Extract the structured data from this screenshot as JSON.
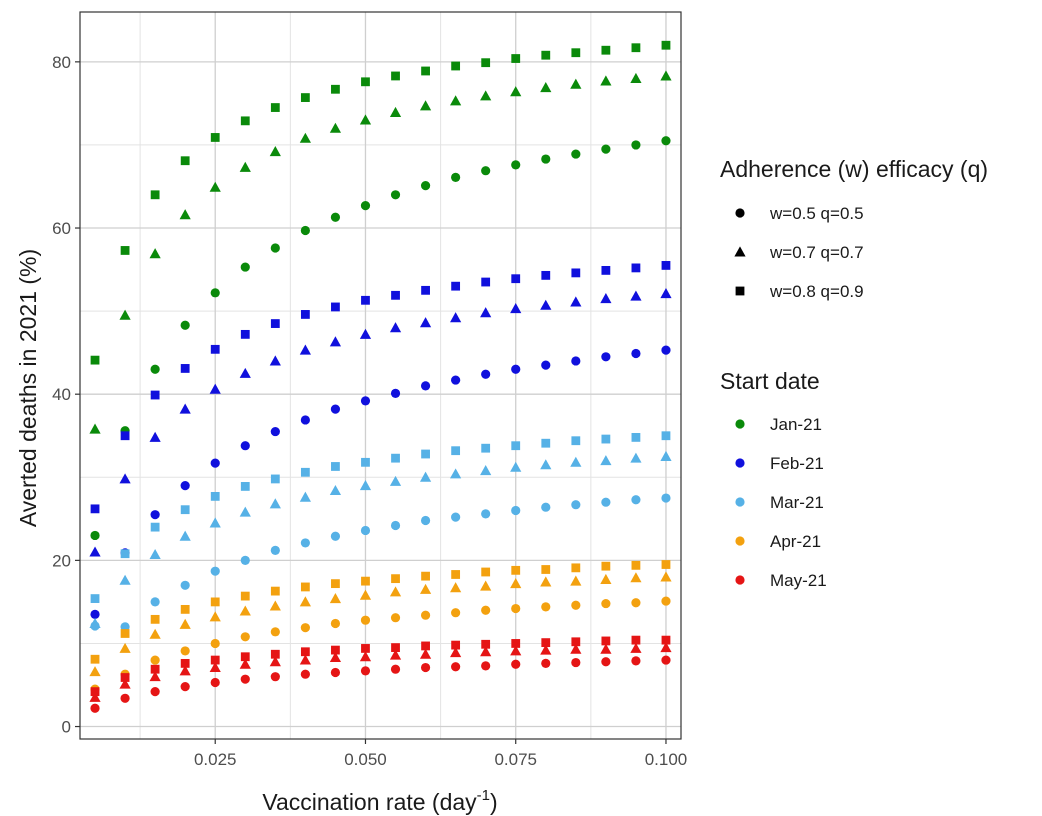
{
  "chart_data": {
    "type": "scatter",
    "xlabel": "Vaccination rate (day",
    "xlabel_superscript": "-1",
    "xlabel_suffix": ")",
    "ylabel": "Averted deaths in 2021 (%)",
    "xlim": [
      0.0025,
      0.1025
    ],
    "ylim": [
      -1.5,
      86
    ],
    "x_ticks": [
      0.025,
      0.05,
      0.075,
      0.1
    ],
    "x_tick_labels": [
      "0.025",
      "0.050",
      "0.075",
      "0.100"
    ],
    "y_ticks": [
      0,
      20,
      40,
      60,
      80
    ],
    "y_tick_labels": [
      "0",
      "20",
      "40",
      "60",
      "80"
    ],
    "grid": true,
    "x": [
      0.005,
      0.01,
      0.015,
      0.02,
      0.025,
      0.03,
      0.035,
      0.04,
      0.045,
      0.05,
      0.055,
      0.06,
      0.065,
      0.07,
      0.075,
      0.08,
      0.085,
      0.09,
      0.095,
      0.1
    ],
    "shape_legend": {
      "title": "Adherence (w) efficacy (q)",
      "entries": [
        {
          "label": "w=0.5 q=0.5",
          "shape": "circle"
        },
        {
          "label": "w=0.7 q=0.7",
          "shape": "triangle"
        },
        {
          "label": "w=0.8 q=0.9",
          "shape": "square"
        }
      ]
    },
    "color_legend": {
      "title": "Start date",
      "entries": [
        {
          "label": "Jan-21",
          "color": "#0a8a0a"
        },
        {
          "label": "Feb-21",
          "color": "#1010dd"
        },
        {
          "label": "Mar-21",
          "color": "#56b1e6"
        },
        {
          "label": "Apr-21",
          "color": "#f3a10f"
        },
        {
          "label": "May-21",
          "color": "#e51515"
        }
      ]
    },
    "legend_position": "right",
    "series": [
      {
        "start": "Jan-21",
        "shape": "circle",
        "values": [
          23.0,
          35.6,
          43.0,
          48.3,
          52.2,
          55.3,
          57.6,
          59.7,
          61.3,
          62.7,
          64.0,
          65.1,
          66.1,
          66.9,
          67.6,
          68.3,
          68.9,
          69.5,
          70.0,
          70.5
        ]
      },
      {
        "start": "Jan-21",
        "shape": "triangle",
        "values": [
          35.8,
          49.5,
          56.9,
          61.6,
          64.9,
          67.3,
          69.2,
          70.8,
          72.0,
          73.0,
          73.9,
          74.7,
          75.3,
          75.9,
          76.4,
          76.9,
          77.3,
          77.7,
          78.0,
          78.3
        ]
      },
      {
        "start": "Jan-21",
        "shape": "square",
        "values": [
          44.1,
          57.3,
          64.0,
          68.1,
          70.9,
          72.9,
          74.5,
          75.7,
          76.7,
          77.6,
          78.3,
          78.9,
          79.5,
          79.9,
          80.4,
          80.8,
          81.1,
          81.4,
          81.7,
          82.0
        ]
      },
      {
        "start": "Feb-21",
        "shape": "circle",
        "values": [
          13.5,
          20.9,
          25.5,
          29.0,
          31.7,
          33.8,
          35.5,
          36.9,
          38.2,
          39.2,
          40.1,
          41.0,
          41.7,
          42.4,
          43.0,
          43.5,
          44.0,
          44.5,
          44.9,
          45.3
        ]
      },
      {
        "start": "Feb-21",
        "shape": "triangle",
        "values": [
          21.0,
          29.8,
          34.8,
          38.2,
          40.6,
          42.5,
          44.0,
          45.3,
          46.3,
          47.2,
          48.0,
          48.6,
          49.2,
          49.8,
          50.3,
          50.7,
          51.1,
          51.5,
          51.8,
          52.1
        ]
      },
      {
        "start": "Feb-21",
        "shape": "square",
        "values": [
          26.2,
          35.0,
          39.9,
          43.1,
          45.4,
          47.2,
          48.5,
          49.6,
          50.5,
          51.3,
          51.9,
          52.5,
          53.0,
          53.5,
          53.9,
          54.3,
          54.6,
          54.9,
          55.2,
          55.5
        ]
      },
      {
        "start": "Mar-21",
        "shape": "circle",
        "values": [
          12.1,
          12.0,
          15.0,
          17.0,
          18.7,
          20.0,
          21.2,
          22.1,
          22.9,
          23.6,
          24.2,
          24.8,
          25.2,
          25.6,
          26.0,
          26.4,
          26.7,
          27.0,
          27.3,
          27.5
        ]
      },
      {
        "start": "Mar-21",
        "shape": "triangle",
        "values": [
          12.4,
          17.6,
          20.7,
          22.9,
          24.5,
          25.8,
          26.8,
          27.6,
          28.4,
          29.0,
          29.5,
          30.0,
          30.4,
          30.8,
          31.2,
          31.5,
          31.8,
          32.0,
          32.3,
          32.5
        ]
      },
      {
        "start": "Mar-21",
        "shape": "square",
        "values": [
          15.4,
          20.8,
          24.0,
          26.1,
          27.7,
          28.9,
          29.8,
          30.6,
          31.3,
          31.8,
          32.3,
          32.8,
          33.2,
          33.5,
          33.8,
          34.1,
          34.4,
          34.6,
          34.8,
          35.0
        ]
      },
      {
        "start": "Apr-21",
        "shape": "circle",
        "values": [
          4.5,
          6.3,
          8.0,
          9.1,
          10.0,
          10.8,
          11.4,
          11.9,
          12.4,
          12.8,
          13.1,
          13.4,
          13.7,
          14.0,
          14.2,
          14.4,
          14.6,
          14.8,
          14.9,
          15.1
        ]
      },
      {
        "start": "Apr-21",
        "shape": "triangle",
        "values": [
          6.6,
          9.4,
          11.1,
          12.3,
          13.2,
          13.9,
          14.5,
          15.0,
          15.4,
          15.8,
          16.2,
          16.5,
          16.7,
          16.9,
          17.2,
          17.4,
          17.5,
          17.7,
          17.9,
          18.0
        ]
      },
      {
        "start": "Apr-21",
        "shape": "square",
        "values": [
          8.1,
          11.2,
          12.9,
          14.1,
          15.0,
          15.7,
          16.3,
          16.8,
          17.2,
          17.5,
          17.8,
          18.1,
          18.3,
          18.6,
          18.8,
          18.9,
          19.1,
          19.3,
          19.4,
          19.5
        ]
      },
      {
        "start": "May-21",
        "shape": "circle",
        "values": [
          2.2,
          3.4,
          4.2,
          4.8,
          5.3,
          5.7,
          6.0,
          6.3,
          6.5,
          6.7,
          6.9,
          7.1,
          7.2,
          7.3,
          7.5,
          7.6,
          7.7,
          7.8,
          7.9,
          8.0
        ]
      },
      {
        "start": "May-21",
        "shape": "triangle",
        "values": [
          3.5,
          5.1,
          6.0,
          6.7,
          7.1,
          7.5,
          7.8,
          8.0,
          8.3,
          8.4,
          8.6,
          8.7,
          8.9,
          9.0,
          9.1,
          9.2,
          9.3,
          9.3,
          9.4,
          9.5
        ]
      },
      {
        "start": "May-21",
        "shape": "square",
        "values": [
          4.2,
          5.9,
          6.9,
          7.6,
          8.0,
          8.4,
          8.7,
          9.0,
          9.2,
          9.4,
          9.5,
          9.7,
          9.8,
          9.9,
          10.0,
          10.1,
          10.2,
          10.3,
          10.4,
          10.4
        ]
      }
    ]
  }
}
